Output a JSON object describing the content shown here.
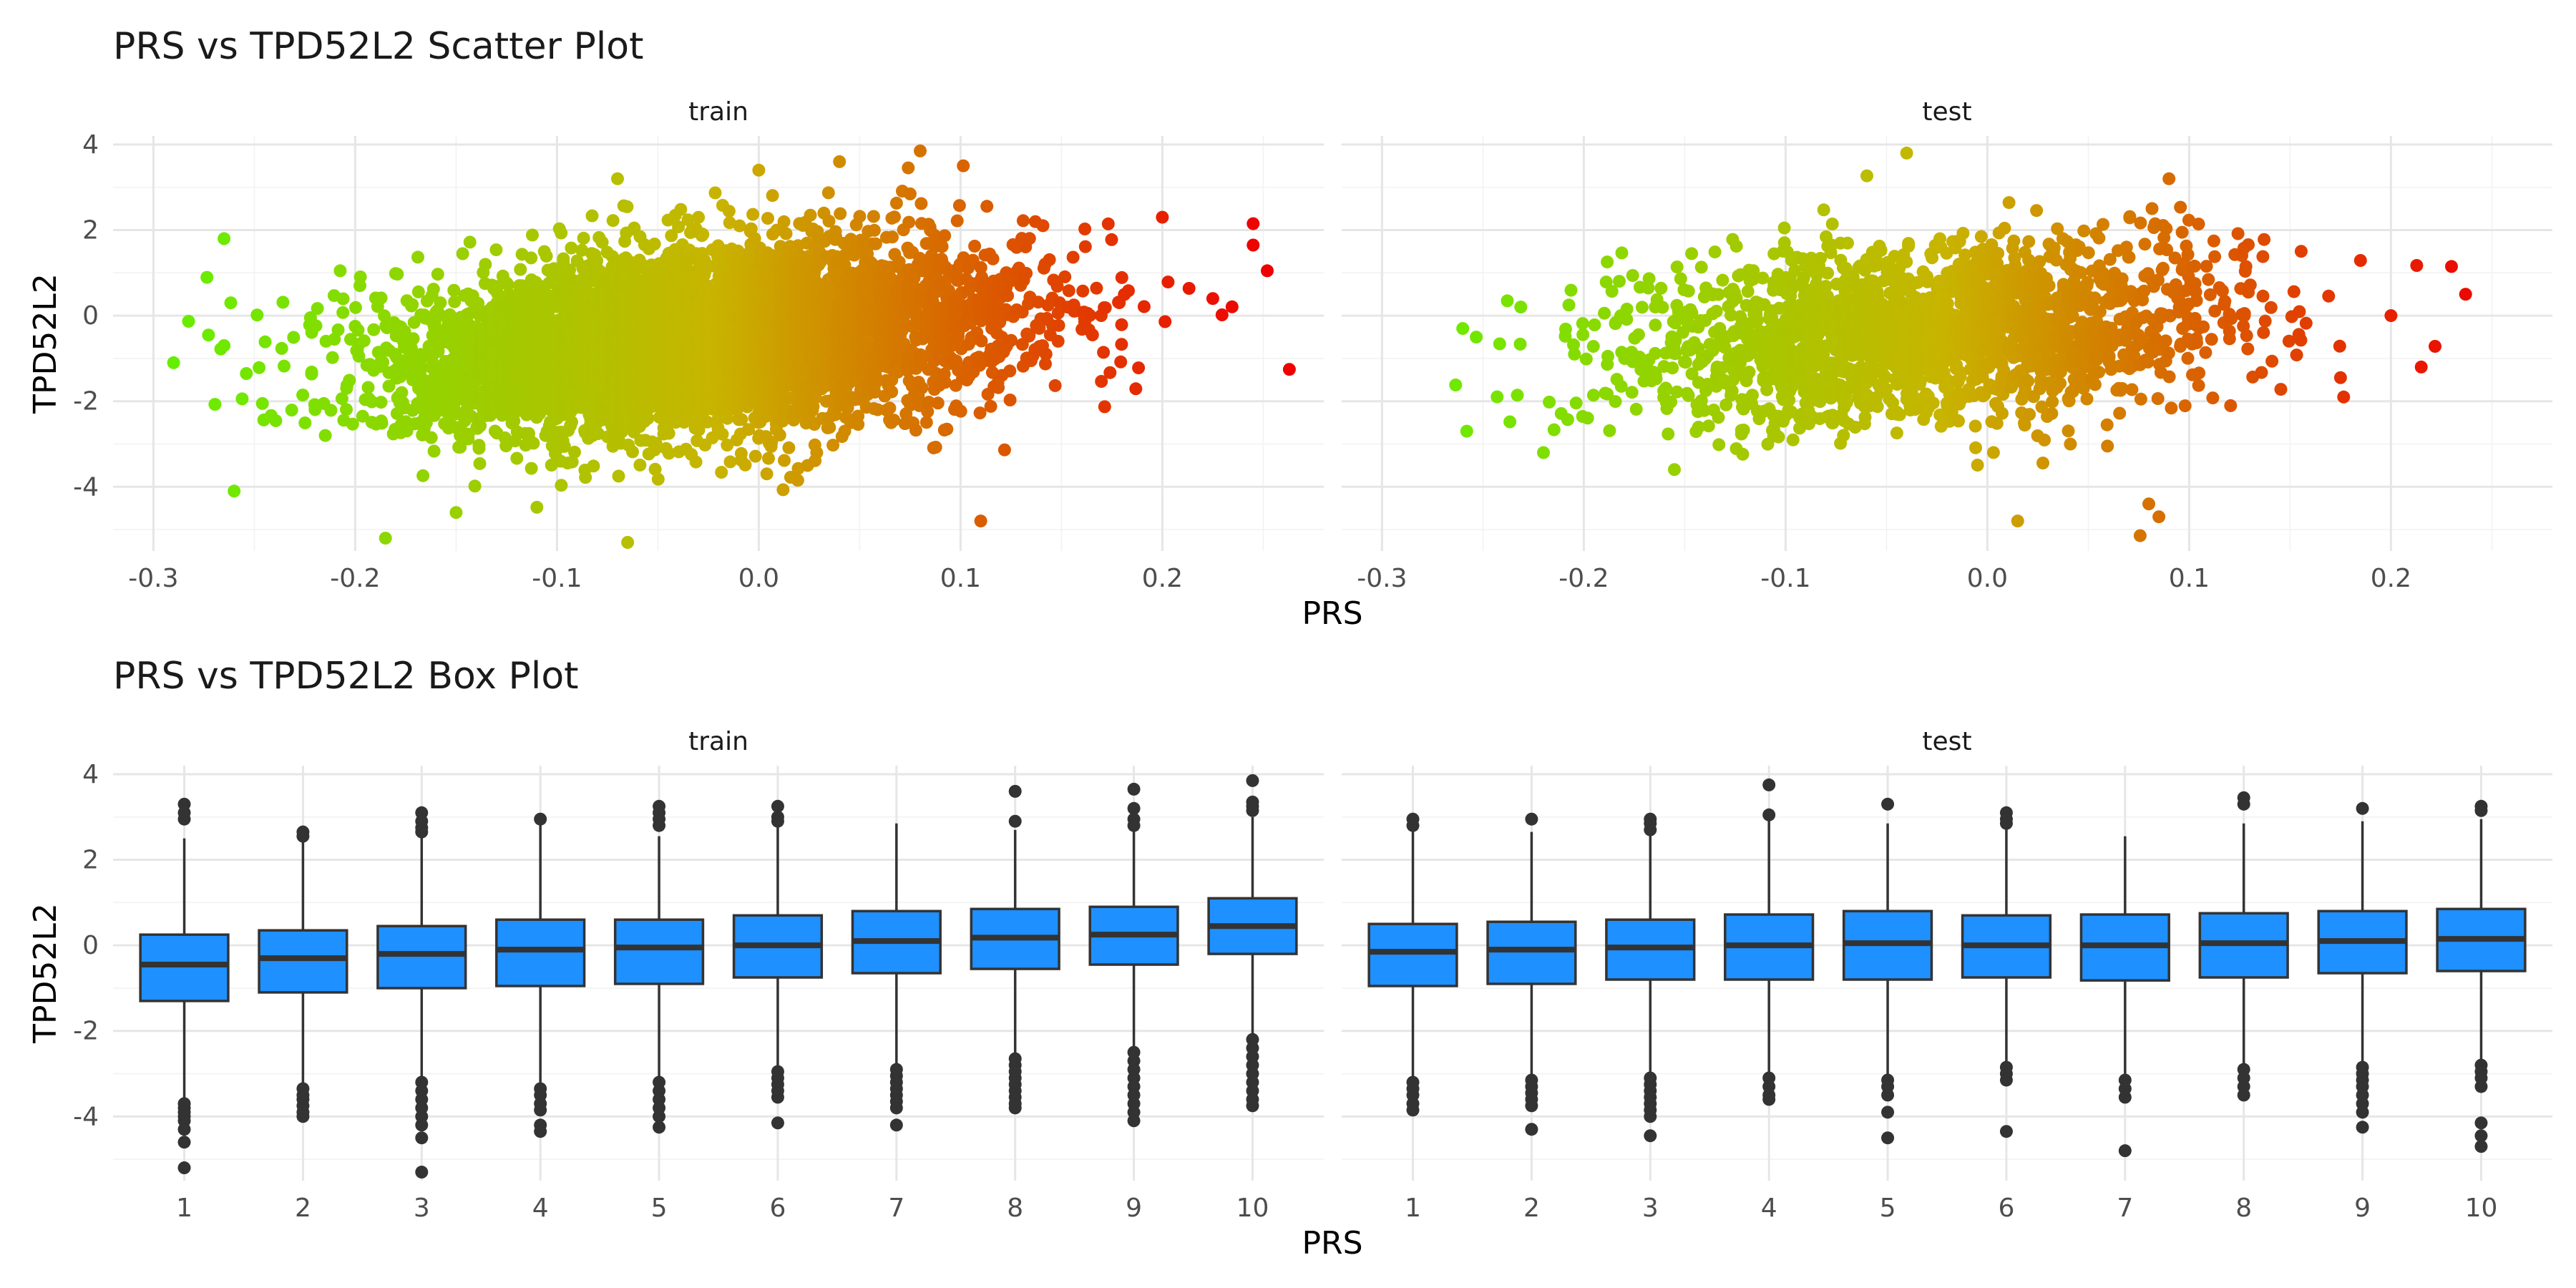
{
  "colors": {
    "low": "#66ee00",
    "mid": "#c8b400",
    "high": "#ee0000",
    "box_fill": "#1e90ff",
    "box_stroke": "#333333",
    "outlier": "#333333"
  },
  "chart_data": [
    {
      "type": "scatter",
      "title": "PRS vs TPD52L2 Scatter Plot",
      "xlabel": "PRS",
      "ylabel": "TPD52L2",
      "xlim": [
        -0.32,
        0.28
      ],
      "ylim": [
        -5.5,
        4.2
      ],
      "x_ticks": [
        -0.3,
        -0.2,
        -0.1,
        0.0,
        0.1,
        0.2
      ],
      "x_tick_labels": [
        "-0.3",
        "-0.2",
        "-0.1",
        "0.0",
        "0.1",
        "0.2"
      ],
      "y_ticks": [
        -4,
        -2,
        0,
        2,
        4
      ],
      "y_tick_labels": [
        "-4",
        "-2",
        "0",
        "2",
        "4"
      ],
      "grid": true,
      "color_scale": {
        "from": -0.29,
        "to": 0.25,
        "low": "#66ee00",
        "mid": "#c8b400",
        "high": "#ee0000"
      },
      "facets": [
        {
          "label": "train",
          "x_dist": {
            "mean": -0.03,
            "sd": 0.075,
            "n": 5200
          },
          "y_model": {
            "intercept": -0.45,
            "slope": 4.0,
            "sd": 1.05
          },
          "points": [
            {
              "x": -0.29,
              "y": -1.1
            },
            {
              "x": -0.265,
              "y": 1.8
            },
            {
              "x": -0.265,
              "y": -0.7
            },
            {
              "x": -0.26,
              "y": -4.1
            },
            {
              "x": -0.185,
              "y": -5.2
            },
            {
              "x": -0.065,
              "y": -5.3
            },
            {
              "x": -0.15,
              "y": -4.6
            },
            {
              "x": 0.08,
              "y": 3.85
            },
            {
              "x": 0.04,
              "y": 3.6
            },
            {
              "x": 0.245,
              "y": 2.15
            },
            {
              "x": 0.245,
              "y": 1.65
            },
            {
              "x": 0.252,
              "y": 1.05
            },
            {
              "x": 0.225,
              "y": 0.4
            },
            {
              "x": 0.2,
              "y": 2.3
            },
            {
              "x": 0.11,
              "y": -4.8
            },
            {
              "x": 0.0,
              "y": 3.4
            },
            {
              "x": -0.07,
              "y": 3.2
            }
          ]
        },
        {
          "label": "test",
          "x_dist": {
            "mean": -0.03,
            "sd": 0.075,
            "n": 2000
          },
          "y_model": {
            "intercept": -0.3,
            "slope": 3.0,
            "sd": 1.05
          },
          "points": [
            {
              "x": -0.26,
              "y": -0.3
            },
            {
              "x": -0.258,
              "y": -2.7
            },
            {
              "x": -0.22,
              "y": -3.2
            },
            {
              "x": -0.04,
              "y": 3.8
            },
            {
              "x": 0.015,
              "y": -4.8
            },
            {
              "x": 0.085,
              "y": -4.7
            },
            {
              "x": 0.08,
              "y": -4.4
            },
            {
              "x": 0.237,
              "y": 0.5
            },
            {
              "x": 0.23,
              "y": 1.15
            },
            {
              "x": 0.215,
              "y": -1.2
            },
            {
              "x": 0.2,
              "y": 0.0
            },
            {
              "x": 0.175,
              "y": -1.45
            },
            {
              "x": 0.09,
              "y": 3.2
            }
          ]
        }
      ]
    },
    {
      "type": "box",
      "title": "PRS vs TPD52L2 Box Plot",
      "xlabel": "PRS",
      "ylabel": "TPD52L2",
      "categories": [
        "1",
        "2",
        "3",
        "4",
        "5",
        "6",
        "7",
        "8",
        "9",
        "10"
      ],
      "ylim": [
        -5.5,
        4.2
      ],
      "y_ticks": [
        -4,
        -2,
        0,
        2,
        4
      ],
      "y_tick_labels": [
        "-4",
        "-2",
        "0",
        "2",
        "4"
      ],
      "grid": true,
      "facets": [
        {
          "label": "train",
          "boxes": [
            {
              "q1": -1.3,
              "median": -0.45,
              "q3": 0.25,
              "whisker_low": -3.6,
              "whisker_high": 2.5,
              "outliers": [
                3.3,
                3.1,
                2.95,
                -3.7,
                -3.8,
                -3.9,
                -4.0,
                -4.1,
                -4.3,
                -4.6,
                -5.2
              ]
            },
            {
              "q1": -1.1,
              "median": -0.3,
              "q3": 0.35,
              "whisker_low": -3.3,
              "whisker_high": 2.5,
              "outliers": [
                2.65,
                2.55,
                -3.35,
                -3.5,
                -3.6,
                -3.75,
                -3.9,
                -4.0
              ]
            },
            {
              "q1": -1.0,
              "median": -0.2,
              "q3": 0.45,
              "whisker_low": -3.1,
              "whisker_high": 2.6,
              "outliers": [
                3.1,
                2.9,
                2.75,
                2.65,
                -3.2,
                -3.4,
                -3.6,
                -3.8,
                -4.0,
                -4.2,
                -4.5,
                -5.3
              ]
            },
            {
              "q1": -0.95,
              "median": -0.1,
              "q3": 0.6,
              "whisker_low": -3.2,
              "whisker_high": 2.95,
              "outliers": [
                2.95,
                -3.35,
                -3.5,
                -3.7,
                -3.85,
                -4.2,
                -4.35
              ]
            },
            {
              "q1": -0.9,
              "median": -0.05,
              "q3": 0.6,
              "whisker_low": -3.1,
              "whisker_high": 2.55,
              "outliers": [
                3.25,
                3.1,
                2.95,
                2.8,
                -3.2,
                -3.4,
                -3.6,
                -3.8,
                -4.0,
                -4.25
              ]
            },
            {
              "q1": -0.75,
              "median": 0.0,
              "q3": 0.7,
              "whisker_low": -2.9,
              "whisker_high": 2.8,
              "outliers": [
                3.25,
                3.0,
                2.9,
                -2.95,
                -3.1,
                -3.25,
                -3.4,
                -3.55,
                -4.15
              ]
            },
            {
              "q1": -0.65,
              "median": 0.1,
              "q3": 0.8,
              "whisker_low": -2.8,
              "whisker_high": 2.85,
              "outliers": [
                -2.9,
                -3.05,
                -3.2,
                -3.35,
                -3.5,
                -3.65,
                -3.8,
                -4.2
              ]
            },
            {
              "q1": -0.55,
              "median": 0.18,
              "q3": 0.85,
              "whisker_low": -2.6,
              "whisker_high": 2.7,
              "outliers": [
                3.6,
                2.9,
                -2.65,
                -2.8,
                -2.95,
                -3.1,
                -3.25,
                -3.4,
                -3.55,
                -3.7,
                -3.8
              ]
            },
            {
              "q1": -0.45,
              "median": 0.25,
              "q3": 0.9,
              "whisker_low": -2.4,
              "whisker_high": 2.7,
              "outliers": [
                3.65,
                3.2,
                2.95,
                2.8,
                -2.5,
                -2.7,
                -2.9,
                -3.1,
                -3.3,
                -3.5,
                -3.7,
                -3.9,
                -4.1
              ]
            },
            {
              "q1": -0.2,
              "median": 0.45,
              "q3": 1.1,
              "whisker_low": -2.1,
              "whisker_high": 3.0,
              "outliers": [
                3.85,
                3.35,
                3.25,
                3.15,
                -2.2,
                -2.4,
                -2.6,
                -2.8,
                -3.0,
                -3.2,
                -3.4,
                -3.6,
                -3.75
              ]
            }
          ]
        },
        {
          "label": "test",
          "boxes": [
            {
              "q1": -0.95,
              "median": -0.15,
              "q3": 0.5,
              "whisker_low": -3.1,
              "whisker_high": 2.7,
              "outliers": [
                2.95,
                2.8,
                -3.2,
                -3.35,
                -3.5,
                -3.7,
                -3.85
              ]
            },
            {
              "q1": -0.9,
              "median": -0.1,
              "q3": 0.55,
              "whisker_low": -3.05,
              "whisker_high": 2.65,
              "outliers": [
                2.95,
                -3.15,
                -3.3,
                -3.45,
                -3.6,
                -3.75,
                -4.3
              ]
            },
            {
              "q1": -0.8,
              "median": -0.05,
              "q3": 0.6,
              "whisker_low": -3.0,
              "whisker_high": 2.65,
              "outliers": [
                2.95,
                2.85,
                2.7,
                -3.1,
                -3.25,
                -3.4,
                -3.55,
                -3.7,
                -3.85,
                -4.0,
                -4.45
              ]
            },
            {
              "q1": -0.8,
              "median": 0.0,
              "q3": 0.72,
              "whisker_low": -3.0,
              "whisker_high": 3.0,
              "outliers": [
                3.75,
                3.05,
                -3.1,
                -3.3,
                -3.5,
                -3.6
              ]
            },
            {
              "q1": -0.8,
              "median": 0.05,
              "q3": 0.8,
              "whisker_low": -3.05,
              "whisker_high": 2.85,
              "outliers": [
                3.3,
                -3.15,
                -3.3,
                -3.5,
                -3.9,
                -4.5
              ]
            },
            {
              "q1": -0.75,
              "median": 0.0,
              "q3": 0.7,
              "whisker_low": -2.75,
              "whisker_high": 2.8,
              "outliers": [
                3.1,
                2.95,
                2.85,
                -2.85,
                -3.0,
                -3.15,
                -4.35
              ]
            },
            {
              "q1": -0.82,
              "median": 0.0,
              "q3": 0.72,
              "whisker_low": -3.0,
              "whisker_high": 2.55,
              "outliers": [
                -3.15,
                -3.35,
                -3.55,
                -4.8
              ]
            },
            {
              "q1": -0.75,
              "median": 0.05,
              "q3": 0.75,
              "whisker_low": -2.8,
              "whisker_high": 2.85,
              "outliers": [
                3.45,
                3.3,
                -2.9,
                -3.1,
                -3.3,
                -3.5
              ]
            },
            {
              "q1": -0.65,
              "median": 0.1,
              "q3": 0.8,
              "whisker_low": -2.75,
              "whisker_high": 2.9,
              "outliers": [
                3.2,
                -2.85,
                -3.0,
                -3.15,
                -3.3,
                -3.5,
                -3.7,
                -3.9,
                -4.25
              ]
            },
            {
              "q1": -0.6,
              "median": 0.15,
              "q3": 0.85,
              "whisker_low": -2.7,
              "whisker_high": 2.95,
              "outliers": [
                3.25,
                3.15,
                -2.8,
                -2.95,
                -3.1,
                -3.3,
                -4.15,
                -4.45,
                -4.7
              ]
            }
          ]
        }
      ]
    }
  ]
}
